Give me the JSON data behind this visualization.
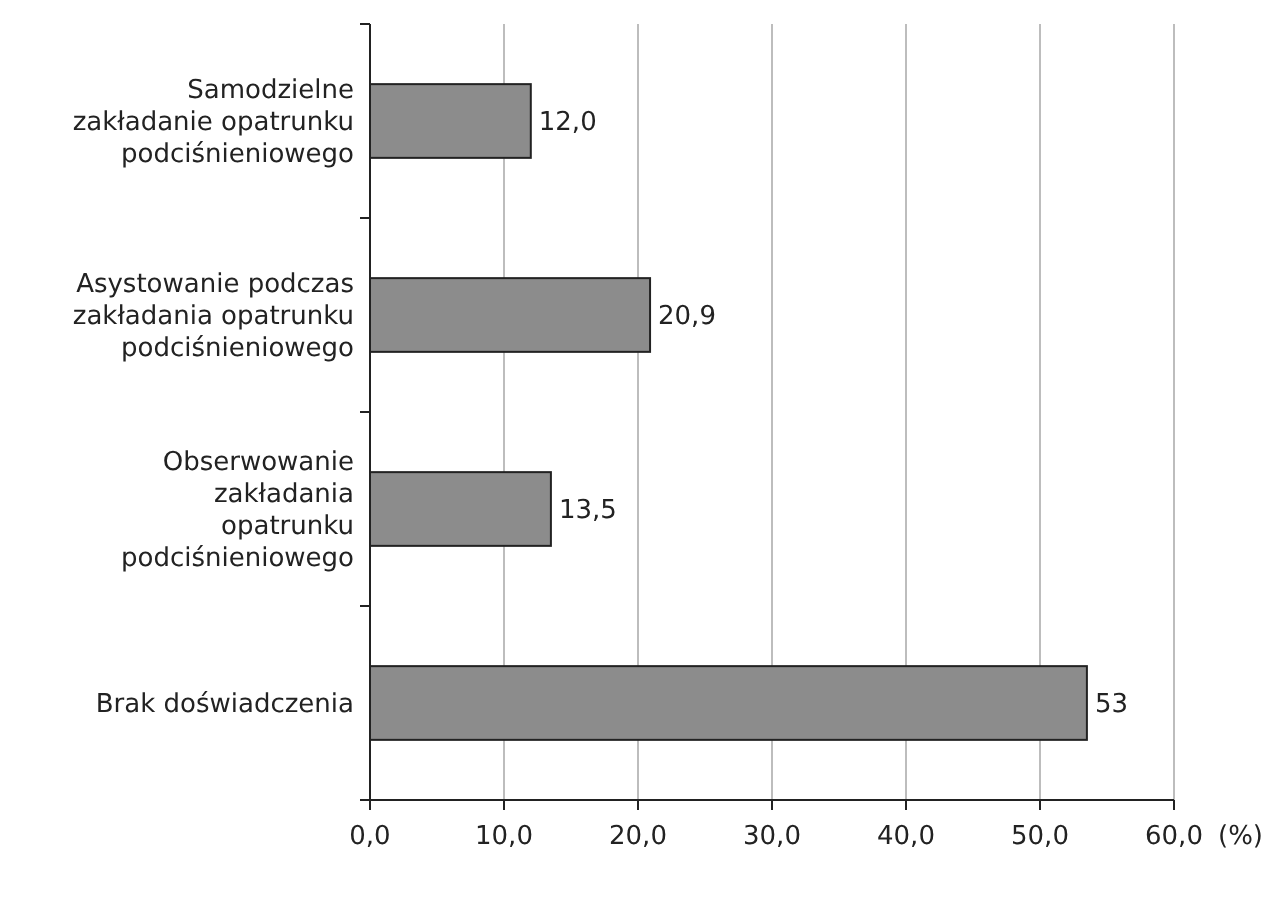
{
  "chart_data": {
    "type": "bar",
    "orientation": "horizontal",
    "categories": [
      "Samodzielne\nzakładanie opatrunku\npodciśnieniowego",
      "Asystowanie podczas\nzakładania opatrunku\npodciśnieniowego",
      "Obserwowanie\nzakładania\nopatrunku\npodciśnieniowego",
      "Brak doświadczenia"
    ],
    "values": [
      12.0,
      20.9,
      13.5,
      53.5
    ],
    "value_labels": [
      "12,0",
      "20,9",
      "13,5",
      "53"
    ],
    "color": "#8c8c8c",
    "xlabel": "(%)",
    "xlim": [
      0,
      60
    ],
    "xticks": [
      {
        "value": 0,
        "label": "0,0"
      },
      {
        "value": 10,
        "label": "10,0"
      },
      {
        "value": 20,
        "label": "20,0"
      },
      {
        "value": 30,
        "label": "30,0"
      },
      {
        "value": 40,
        "label": "40,0"
      },
      {
        "value": 50,
        "label": "50,0"
      },
      {
        "value": 60,
        "label": "60,0"
      }
    ],
    "grid": "x"
  }
}
